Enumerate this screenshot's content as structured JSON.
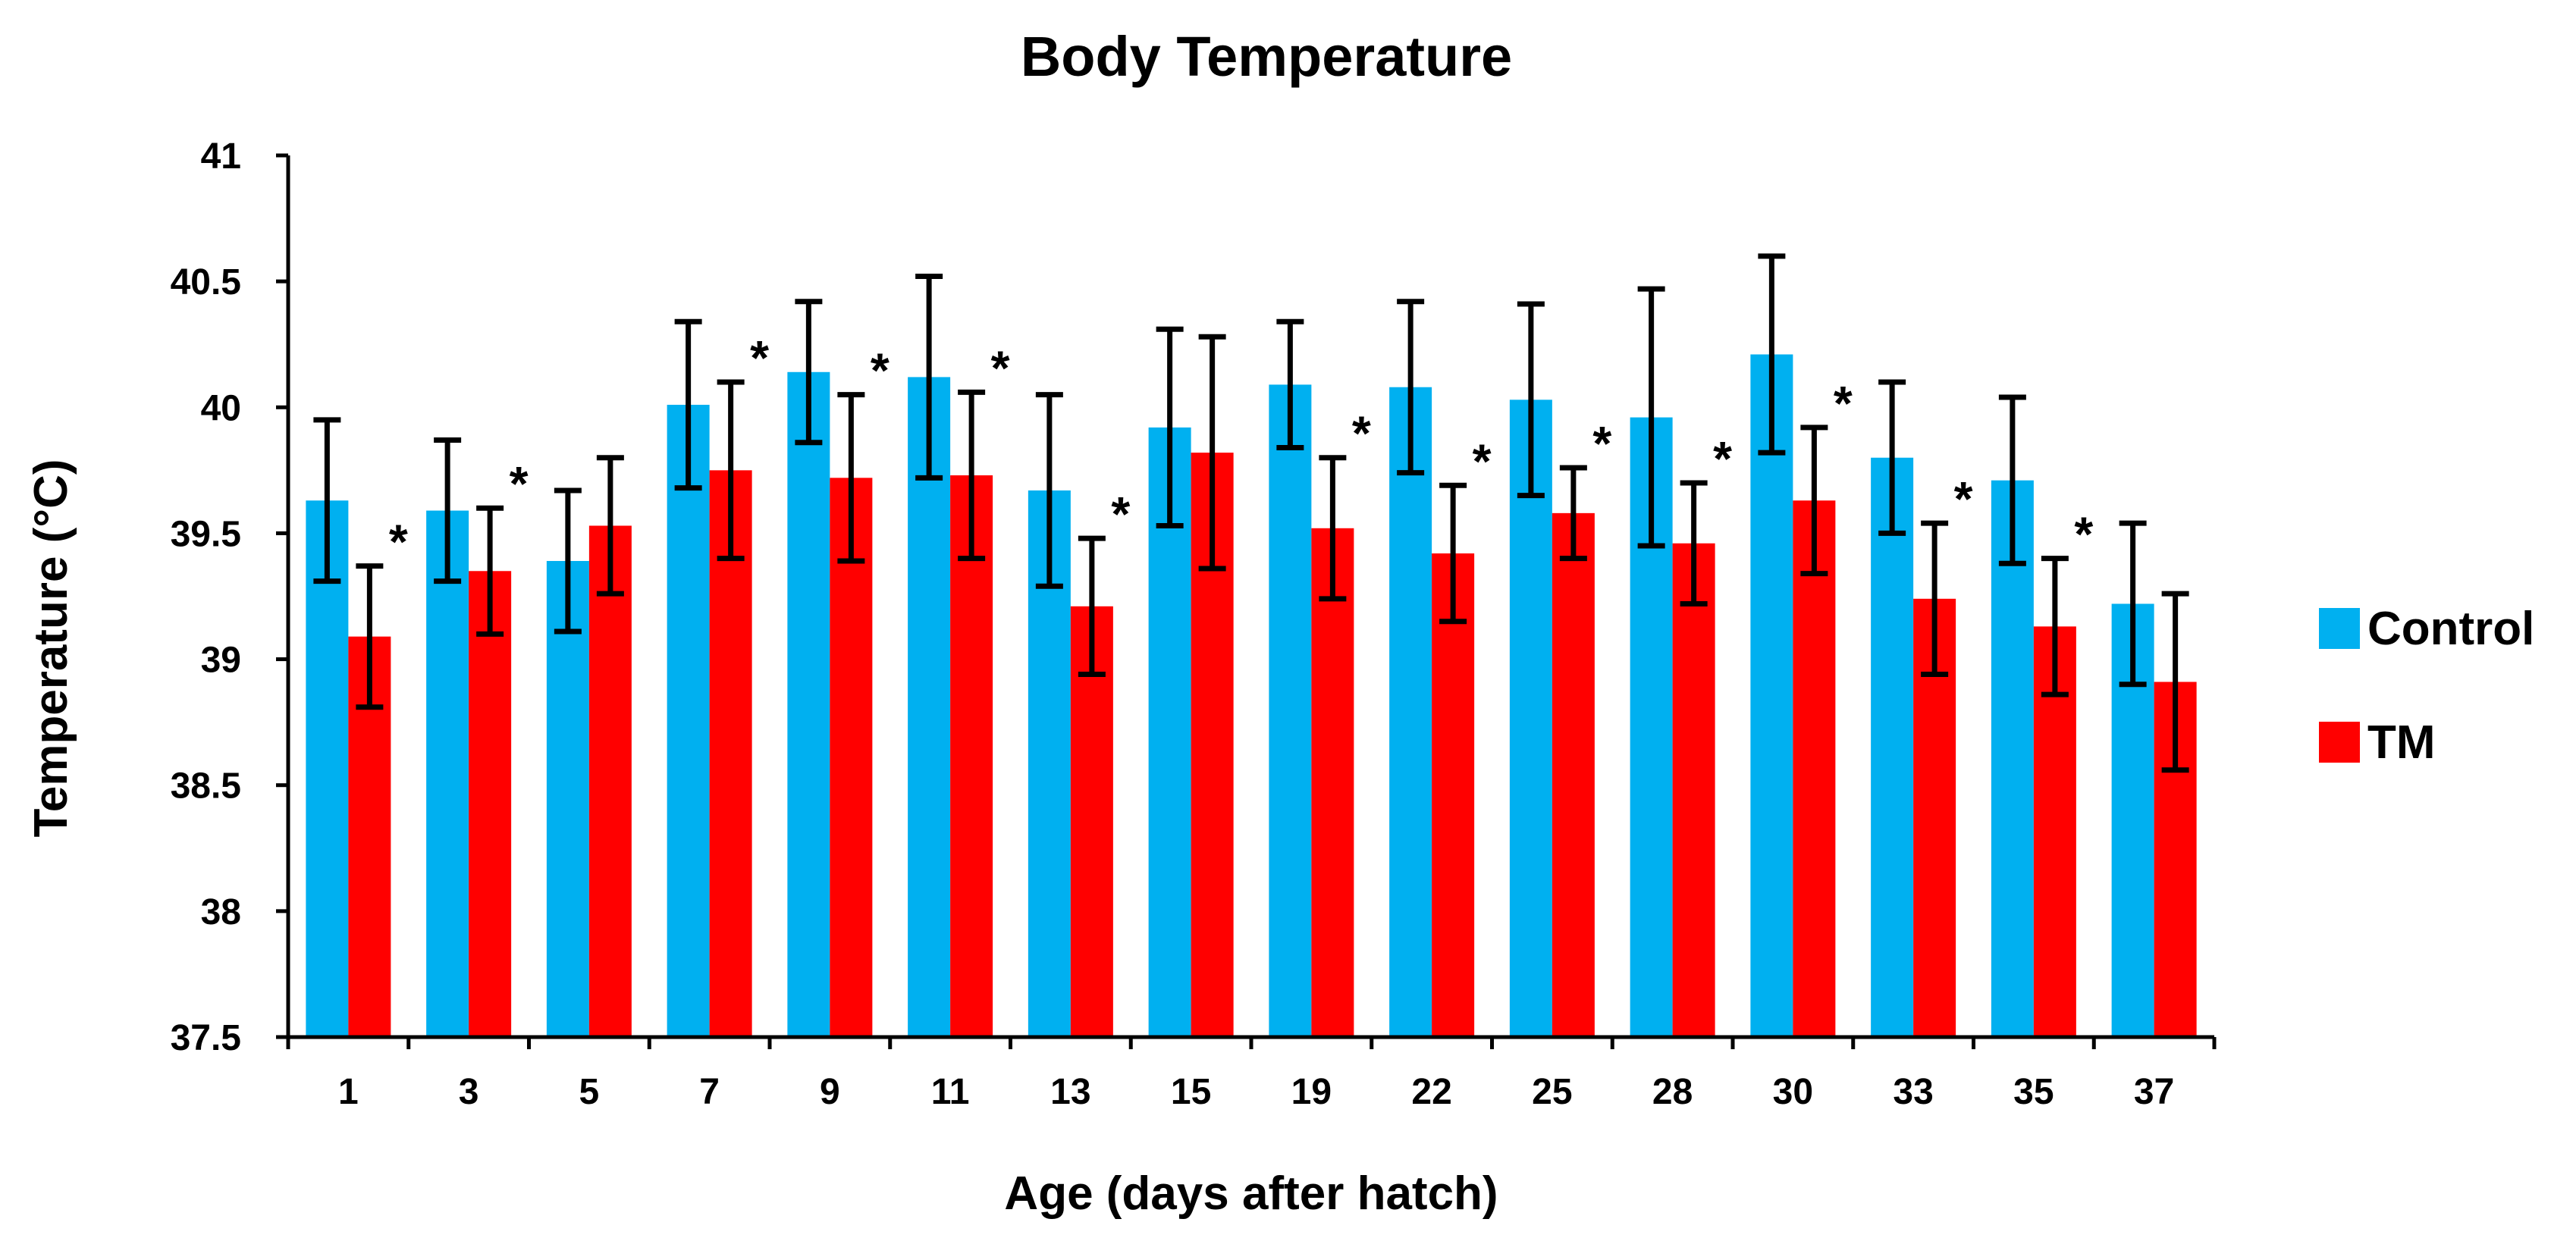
{
  "chart_data": {
    "type": "bar",
    "title": "Body Temperature",
    "xlabel": "Age (days after hatch)",
    "ylabel": "Temperature (°C)",
    "ylim": [
      37.5,
      41
    ],
    "yticks": [
      "37.5",
      "38",
      "38.5",
      "39",
      "39.5",
      "40",
      "40.5",
      "41"
    ],
    "categories": [
      "1",
      "3",
      "5",
      "7",
      "9",
      "11",
      "13",
      "15",
      "19",
      "22",
      "25",
      "28",
      "30",
      "33",
      "35",
      "37"
    ],
    "series": [
      {
        "name": "Control",
        "color": "#00b0f0",
        "values": [
          39.63,
          39.59,
          39.39,
          40.01,
          40.14,
          40.12,
          39.67,
          39.92,
          40.09,
          40.08,
          40.03,
          39.96,
          40.21,
          39.8,
          39.71,
          39.22
        ],
        "errors": [
          0.32,
          0.28,
          0.28,
          0.33,
          0.28,
          0.4,
          0.38,
          0.39,
          0.25,
          0.34,
          0.38,
          0.51,
          0.39,
          0.3,
          0.33,
          0.32
        ]
      },
      {
        "name": "TM",
        "color": "#ff0000",
        "values": [
          39.09,
          39.35,
          39.53,
          39.75,
          39.72,
          39.73,
          39.21,
          39.82,
          39.52,
          39.42,
          39.58,
          39.46,
          39.63,
          39.24,
          39.13,
          38.91
        ],
        "errors": [
          0.28,
          0.25,
          0.27,
          0.35,
          0.33,
          0.33,
          0.27,
          0.46,
          0.28,
          0.27,
          0.18,
          0.24,
          0.29,
          0.3,
          0.27,
          0.35
        ]
      }
    ],
    "significance_marker": "*",
    "significant": [
      true,
      true,
      false,
      true,
      true,
      true,
      true,
      false,
      true,
      true,
      true,
      true,
      true,
      true,
      true,
      false
    ],
    "legend_position": "right",
    "grid": false
  }
}
